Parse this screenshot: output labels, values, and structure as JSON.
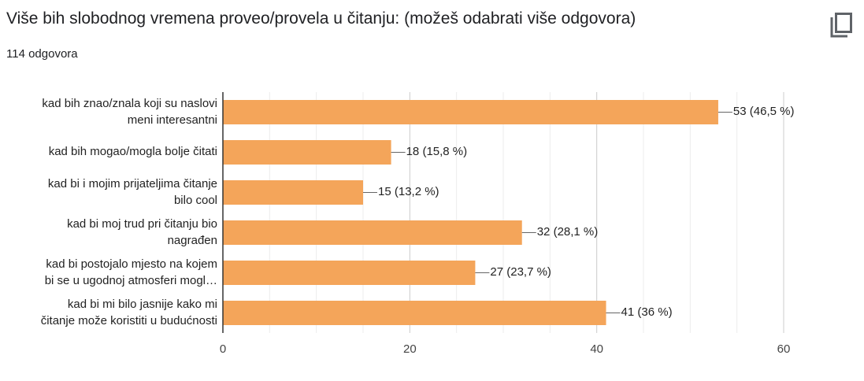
{
  "header": {
    "title": "Više bih slobodnog vremena proveo/provela u čitanju: (možeš odabrati više odgovora)",
    "response_count": "114 odgovora",
    "copy_icon": "copy-icon"
  },
  "chart_data": {
    "type": "bar",
    "orientation": "horizontal",
    "categories": [
      [
        "kad bih znao/znala koji su naslovi",
        "meni interesantni"
      ],
      [
        "kad bih mogao/mogla bolje čitati"
      ],
      [
        "kad bi i mojim prijateljima čitanje",
        "bilo cool"
      ],
      [
        "kad bi moj trud pri čitanju bio",
        "nagrađen"
      ],
      [
        "kad bi postojalo mjesto na kojem",
        "bi se u ugodnoj atmosferi mogl…"
      ],
      [
        "kad bi mi bilo jasnije kako mi",
        "čitanje može koristiti u budućnosti"
      ]
    ],
    "values": [
      53,
      18,
      15,
      32,
      27,
      41
    ],
    "value_labels": [
      "53 (46,5 %)",
      "18 (15,8 %)",
      "15 (13,2 %)",
      "32 (28,1 %)",
      "27 (23,7 %)",
      "41 (36 %)"
    ],
    "xlim": [
      0,
      60
    ],
    "xticks": [
      0,
      20,
      40,
      60
    ],
    "bar_color": "#f4a55a",
    "grid": true
  }
}
